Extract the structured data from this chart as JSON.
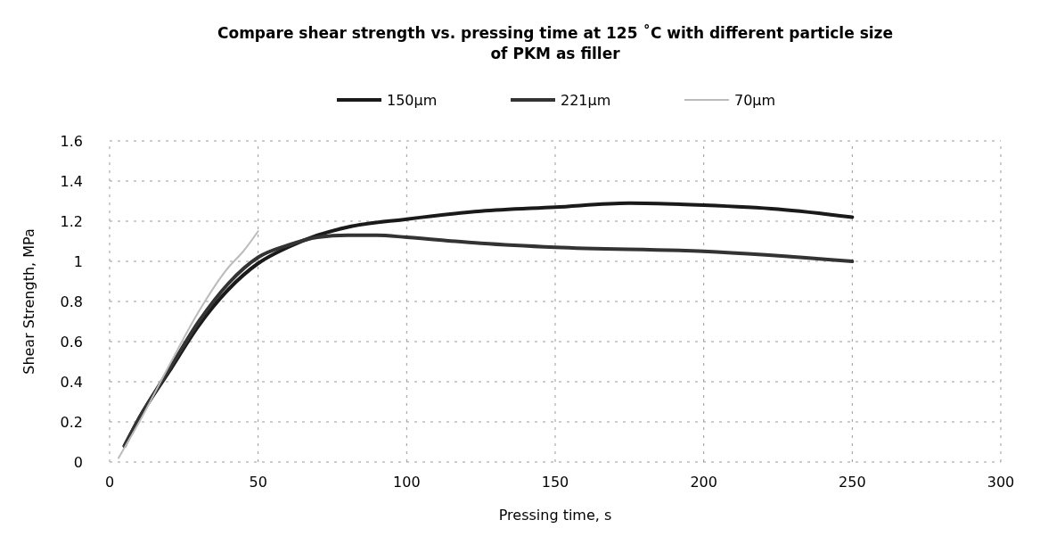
{
  "chart_data": {
    "type": "line",
    "title": "Compare shear strength vs. pressing time at 125 ˚C with different  particle size of PKM as filler",
    "xlabel": "Pressing time, s",
    "ylabel": "Shear Strength, MPa",
    "xlim": [
      0,
      300
    ],
    "xticks": [
      0,
      50,
      100,
      150,
      200,
      250,
      300
    ],
    "ylim": [
      0,
      1.6
    ],
    "yticks": [
      0,
      0.2,
      0.4,
      0.6,
      0.8,
      1,
      1.2,
      1.4,
      1.6
    ],
    "grid": true,
    "legend": "top",
    "line_style": "solid",
    "series": [
      {
        "name": "150µm",
        "color": "#1a1a1a",
        "x": [
          5,
          10,
          20,
          30,
          40,
          50,
          60,
          70,
          80,
          100,
          125,
          150,
          175,
          200,
          225,
          250
        ],
        "values": [
          0.08,
          0.22,
          0.45,
          0.68,
          0.86,
          0.99,
          1.07,
          1.13,
          1.17,
          1.21,
          1.25,
          1.27,
          1.29,
          1.28,
          1.26,
          1.22
        ]
      },
      {
        "name": "221µm",
        "color": "#333333",
        "x": [
          5,
          10,
          20,
          30,
          40,
          50,
          60,
          70,
          80,
          90,
          100,
          125,
          150,
          200,
          250
        ],
        "values": [
          0.08,
          0.22,
          0.46,
          0.7,
          0.89,
          1.02,
          1.08,
          1.12,
          1.13,
          1.13,
          1.12,
          1.09,
          1.07,
          1.05,
          1
        ]
      },
      {
        "name": "70µm",
        "color": "#bbbbbb",
        "x": [
          3,
          10,
          20,
          30,
          40,
          45,
          50
        ],
        "values": [
          0.02,
          0.2,
          0.48,
          0.75,
          0.97,
          1.05,
          1.15
        ]
      }
    ]
  }
}
